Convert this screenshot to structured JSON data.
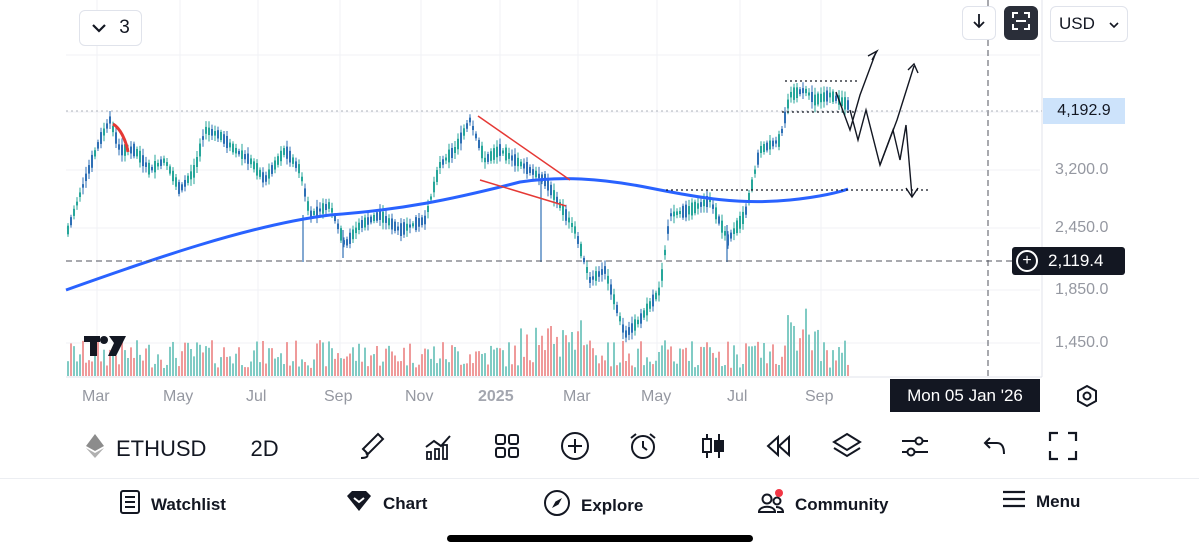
{
  "interval": {
    "value": "3"
  },
  "currency": {
    "value": "USD"
  },
  "price_axis": {
    "labels": [
      "3,200.0",
      "2,450.0",
      "1,850.0",
      "1,450.0"
    ],
    "current_price": "4,192.9",
    "crosshair_price": "2,119.4"
  },
  "time_axis": {
    "labels": [
      {
        "text": "Mar",
        "bold": false
      },
      {
        "text": "May",
        "bold": false
      },
      {
        "text": "Jul",
        "bold": false
      },
      {
        "text": "Sep",
        "bold": false
      },
      {
        "text": "Nov",
        "bold": false
      },
      {
        "text": "2025",
        "bold": true
      },
      {
        "text": "Mar",
        "bold": false
      },
      {
        "text": "May",
        "bold": false
      },
      {
        "text": "Jul",
        "bold": false
      },
      {
        "text": "Sep",
        "bold": false
      }
    ],
    "crosshair_date": "Mon 05 Jan '26"
  },
  "symbol": {
    "name": "ETHUSD",
    "timeframe": "2D"
  },
  "nav": {
    "watchlist": "Watchlist",
    "chart": "Chart",
    "explore": "Explore",
    "community": "Community",
    "menu": "Menu"
  },
  "colors": {
    "ma_line": "#2962ff",
    "candle_up": "#26a69a",
    "candle_down": "#2e6fb5",
    "volume_up": "#80cbc4",
    "volume_down": "#ef9a9a",
    "annotation_red": "#e53935",
    "current_price_bg": "#cde3fb",
    "crosshair_bg": "#131722"
  },
  "icons": [
    "chevron-down-icon",
    "arrow-down-icon",
    "fullscreen-icon",
    "settings-hexagon-icon",
    "ethereum-icon",
    "brush-icon",
    "indicators-icon",
    "grid-icon",
    "add-icon",
    "alarm-icon",
    "candles-icon",
    "replay-icon",
    "layers-icon",
    "sliders-icon",
    "undo-icon",
    "expand-icon",
    "watchlist-icon",
    "chart-diamond-icon",
    "compass-icon",
    "community-icon",
    "menu-icon"
  ]
}
